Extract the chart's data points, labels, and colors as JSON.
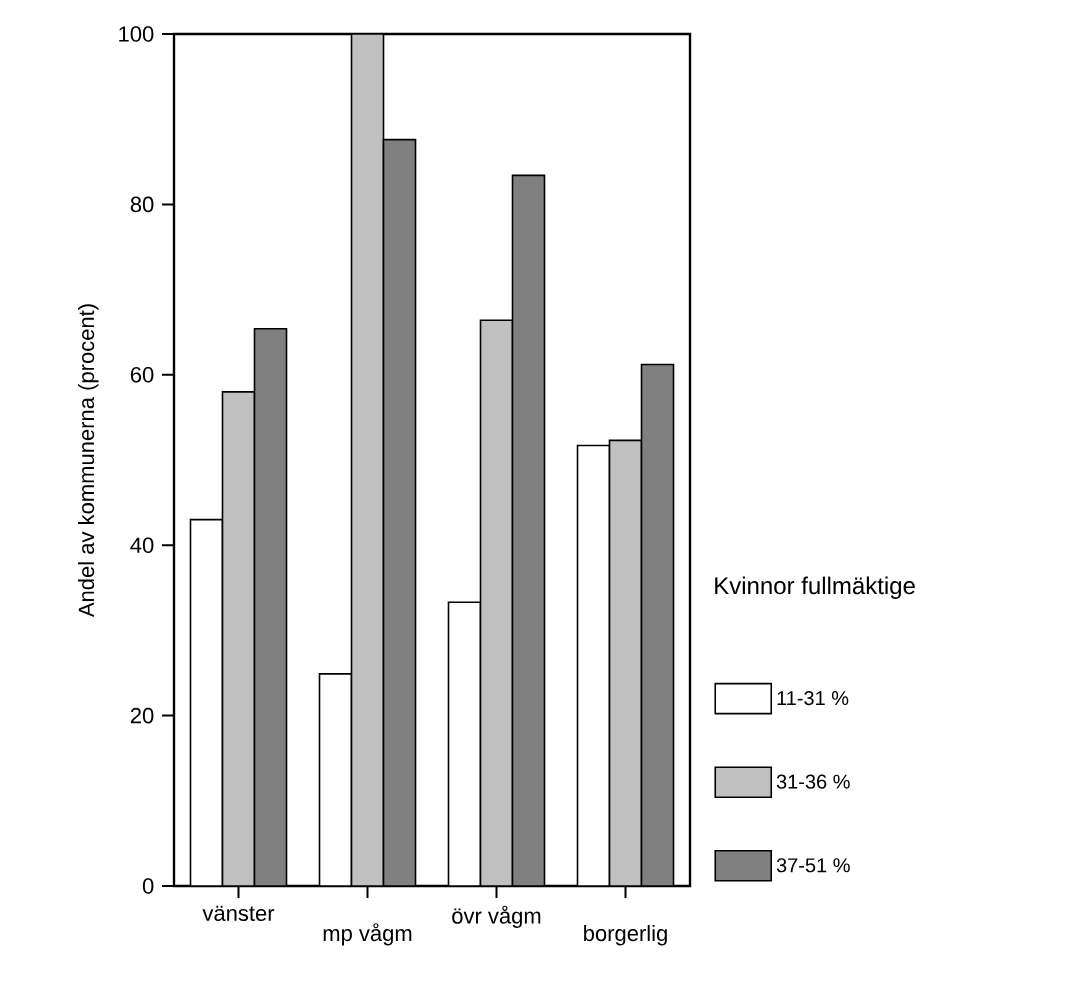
{
  "chart_data": {
    "type": "bar",
    "ylabel": "Andel av kommunerna (procent)",
    "legend_title": "Kvinnor fullmäktige",
    "categories": [
      "vänster",
      "mp vågm",
      "övr vågm",
      "borgerlig"
    ],
    "series": [
      {
        "name": "11-31 %",
        "color": "#ffffff",
        "values": [
          43.0,
          24.9,
          33.3,
          51.7
        ]
      },
      {
        "name": "31-36 %",
        "color": "#c0c0c0",
        "values": [
          58.0,
          100,
          66.4,
          52.3
        ]
      },
      {
        "name": "37-51 %",
        "color": "#808080",
        "values": [
          65.4,
          87.6,
          83.4,
          61.2
        ]
      }
    ],
    "ylim": [
      0,
      100
    ],
    "yticks": [
      0,
      20,
      40,
      60,
      80,
      100
    ],
    "grid": false,
    "legend": "right"
  }
}
